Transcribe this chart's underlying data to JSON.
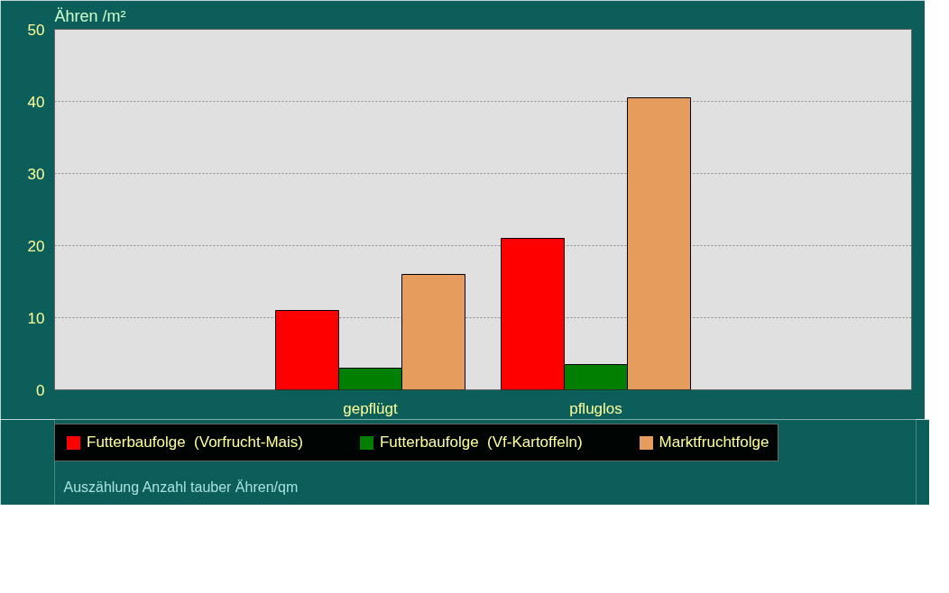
{
  "chart_data": {
    "type": "bar",
    "ylabel": "Ähren /m²",
    "categories": [
      "gepflügt",
      "pfluglos"
    ],
    "series": [
      {
        "name": "Futterbaufolge  (Vorfrucht-Mais)",
        "color": "#ff0000",
        "values": [
          11,
          21
        ]
      },
      {
        "name": "Futterbaufolge  (Vf-Kartoffeln)",
        "color": "#007f00",
        "values": [
          3,
          3.5
        ]
      },
      {
        "name": "Marktfruchtfolge",
        "color": "#e59c5c",
        "values": [
          16,
          40.5
        ]
      }
    ],
    "ylim": [
      0,
      50
    ],
    "yticks": [
      0,
      10,
      20,
      30,
      40,
      50
    ],
    "grid": "y",
    "legend": "bottom",
    "annotations": [
      "Auszählung Anzahl tauber Ähren/qm"
    ]
  }
}
